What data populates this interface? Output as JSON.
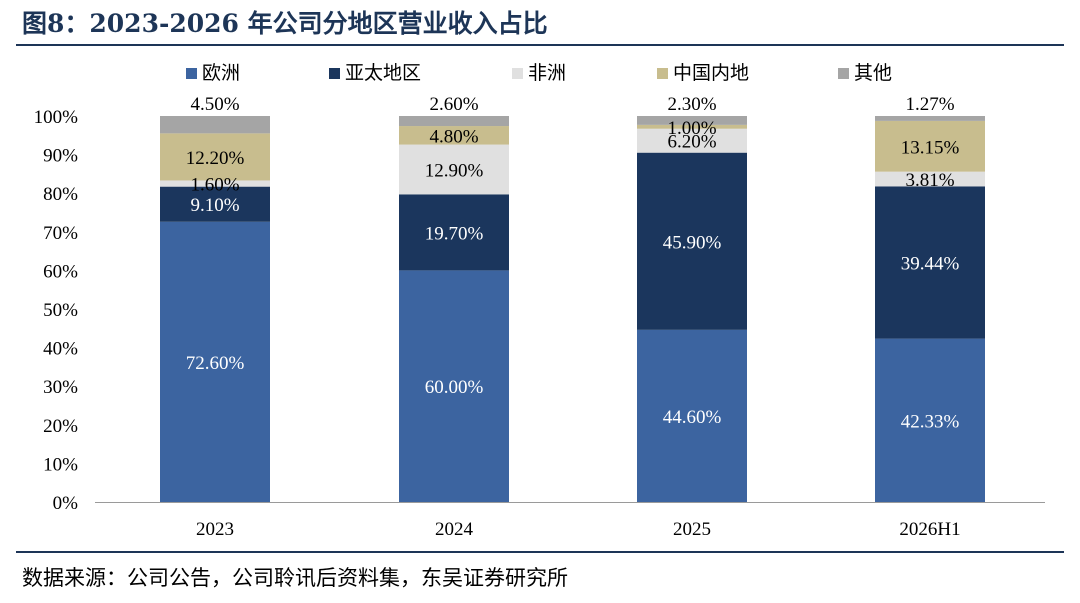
{
  "title": "图8：2023-2026 年公司分地区营业收入占比",
  "source": "数据来源：公司公告，公司聆讯后资料集，东吴证券研究所",
  "chart_data": {
    "type": "bar",
    "stacked": true,
    "categories": [
      "2023",
      "2024",
      "2025",
      "2026H1"
    ],
    "ylim": [
      0,
      100
    ],
    "yticks": [
      "0%",
      "10%",
      "20%",
      "30%",
      "40%",
      "50%",
      "60%",
      "70%",
      "80%",
      "90%",
      "100%"
    ],
    "legend_position": "top",
    "grid": false,
    "series": [
      {
        "name": "欧洲",
        "color": "#3c64a0",
        "values": [
          72.6,
          60.0,
          44.6,
          42.33
        ],
        "labels": [
          "72.60%",
          "60.00%",
          "44.60%",
          "42.33%"
        ],
        "label_color": "#ffffff"
      },
      {
        "name": "亚太地区",
        "color": "#1b365d",
        "values": [
          9.1,
          19.7,
          45.9,
          39.44
        ],
        "labels": [
          "9.10%",
          "19.70%",
          "45.90%",
          "39.44%"
        ],
        "label_color": "#ffffff"
      },
      {
        "name": "非洲",
        "color": "#e0e0e0",
        "values": [
          1.6,
          12.9,
          6.2,
          3.81
        ],
        "labels": [
          "1.60%",
          "12.90%",
          "6.20%",
          "3.81%"
        ],
        "label_color": "#000000"
      },
      {
        "name": "中国内地",
        "color": "#c8bd8e",
        "values": [
          12.2,
          4.8,
          1.0,
          13.15
        ],
        "labels": [
          "12.20%",
          "4.80%",
          "1.00%",
          "13.15%"
        ],
        "label_color": "#000000"
      },
      {
        "name": "其他",
        "color": "#a5a5a5",
        "values": [
          4.5,
          2.6,
          2.3,
          1.27
        ],
        "labels": [
          "4.50%",
          "2.60%",
          "2.30%",
          "1.27%"
        ],
        "label_color": "#000000"
      }
    ]
  }
}
